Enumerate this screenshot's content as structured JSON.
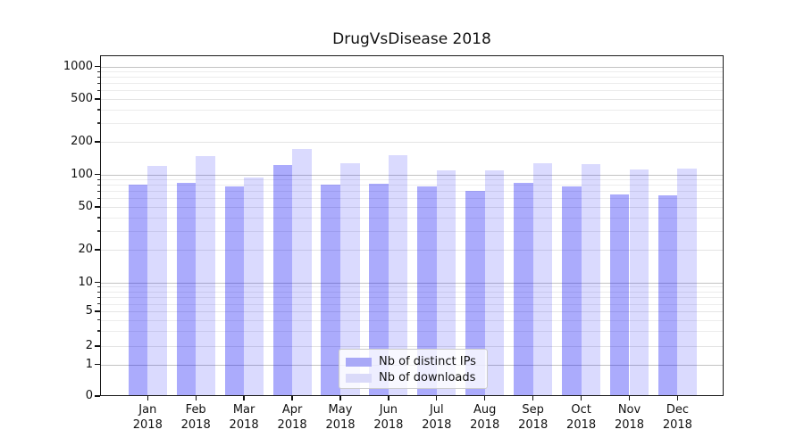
{
  "chart_data": {
    "type": "bar",
    "title": "DrugVsDisease 2018",
    "categories": [
      "Jan",
      "Feb",
      "Mar",
      "Apr",
      "May",
      "Jun",
      "Jul",
      "Aug",
      "Sep",
      "Oct",
      "Nov",
      "Dec"
    ],
    "x_tick_second_line": "2018",
    "series": [
      {
        "name": "Nb of distinct IPs",
        "color": "rgba(10,10,245,0.34)",
        "legend_color": "#a9a9f7",
        "values": [
          80,
          83,
          77,
          122,
          81,
          82,
          78,
          70,
          84,
          78,
          65,
          64
        ]
      },
      {
        "name": "Nb of downloads",
        "color": "rgba(10,10,245,0.15)",
        "legend_color": "#dadaf9",
        "values": [
          120,
          148,
          94,
          171,
          126,
          151,
          109,
          110,
          127,
          125,
          111,
          113
        ]
      }
    ],
    "xlabel": "",
    "ylabel": "",
    "yscale": "symlog",
    "yticks": [
      0,
      1,
      2,
      5,
      10,
      20,
      50,
      100,
      200,
      500,
      1000
    ],
    "ylim": [
      0,
      1270
    ],
    "grid": "both",
    "legend_position": "lower center",
    "grid_major_color": "#c3c3c3",
    "grid_minor_color": "#ececec"
  }
}
